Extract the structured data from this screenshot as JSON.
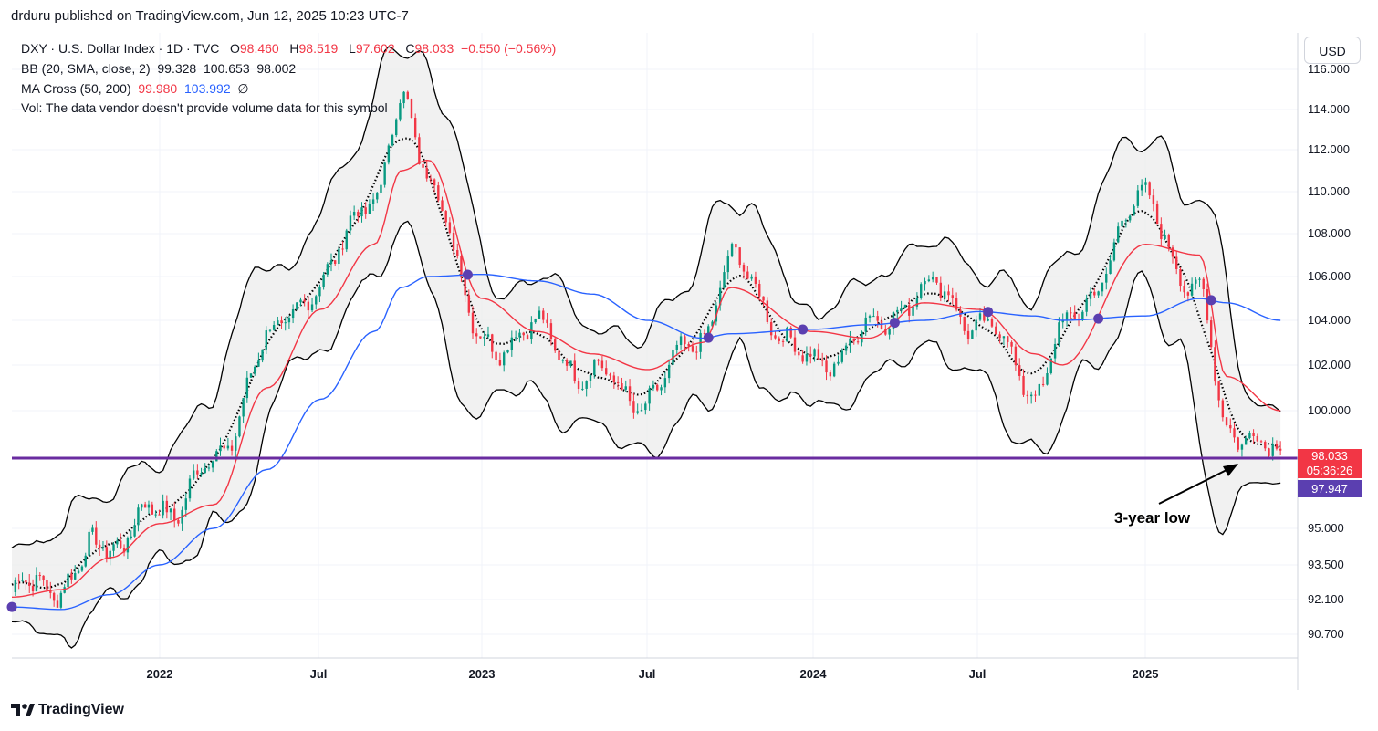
{
  "header": {
    "published": "drduru published on TradingView.com, Jun 12, 2025 10:23 UTC-7"
  },
  "legend": {
    "symbol": "DXY · U.S. Dollar Index · 1D · TVC",
    "o_label": "O",
    "o_value": "98.460",
    "h_label": "H",
    "h_value": "98.519",
    "l_label": "L",
    "l_value": "97.602",
    "c_label": "C",
    "c_value": "98.033",
    "change": "−0.550 (−0.56%)",
    "bb_label": "BB (20, SMA, close, 2)",
    "bb_values": [
      "99.328",
      "100.653",
      "98.002"
    ],
    "ma_label": "MA Cross (50, 200)",
    "ma_fast": "99.980",
    "ma_slow": "103.992",
    "ma_symbol": "∅",
    "vol": "Vol: The data vendor doesn't provide volume data for this symbol"
  },
  "currency_button": "USD",
  "price_tags": {
    "last": "98.033",
    "countdown": "05:36:26",
    "line_level": "97.947"
  },
  "annotation": "3-year low",
  "footer_logo": "TradingView",
  "colors": {
    "up": "#089981",
    "down": "#f23645",
    "ma200": "#2962ff",
    "ma50": "#f23645",
    "level_line": "#6a2ca0",
    "bb": "#000000",
    "cross": "#5b3fb0"
  },
  "chart_data": {
    "type": "line",
    "title": "DXY · U.S. Dollar Index · 1D · TVC",
    "x_ticks": [
      "2022",
      "Jul",
      "2023",
      "Jul",
      "2024",
      "Jul",
      "2025"
    ],
    "y_ticks": [
      "116.000",
      "114.000",
      "112.000",
      "110.000",
      "108.000",
      "106.000",
      "104.000",
      "102.000",
      "100.000",
      "95.000",
      "93.500",
      "92.100",
      "90.700"
    ],
    "horizontal_line": 97.947,
    "x": [
      "2021-07",
      "2021-09",
      "2021-11",
      "2022-01",
      "2022-03",
      "2022-05",
      "2022-07",
      "2022-09",
      "2022-10",
      "2022-11",
      "2023-01",
      "2023-03",
      "2023-05",
      "2023-07",
      "2023-09",
      "2023-10",
      "2024-01",
      "2024-03",
      "2024-05",
      "2024-07",
      "2024-09",
      "2024-10",
      "2025-01",
      "2025-03",
      "2025-04",
      "2025-06"
    ],
    "series": [
      {
        "name": "DXY",
        "values": [
          92.4,
          92.8,
          94.5,
          95.7,
          97.6,
          103.0,
          105.8,
          110.0,
          114.0,
          111.0,
          103.0,
          103.5,
          101.5,
          100.5,
          103.5,
          106.5,
          102.0,
          103.5,
          105.5,
          104.0,
          101.0,
          103.5,
          109.5,
          105.0,
          99.5,
          98.0
        ]
      },
      {
        "name": "MA 200",
        "values": [
          91.8,
          91.7,
          92.3,
          93.5,
          95.0,
          97.5,
          100.5,
          103.5,
          105.5,
          106.0,
          106.1,
          105.8,
          105.2,
          104.0,
          103.2,
          103.4,
          103.6,
          103.8,
          104.0,
          104.4,
          104.2,
          104.0,
          104.2,
          105.0,
          104.8,
          104.0
        ]
      },
      {
        "name": "MA 50",
        "values": [
          92.2,
          92.5,
          93.8,
          95.2,
          96.0,
          101.0,
          104.5,
          107.5,
          111.0,
          111.5,
          105.0,
          103.5,
          102.5,
          101.8,
          103.0,
          105.5,
          103.5,
          103.2,
          104.8,
          104.5,
          102.5,
          102.0,
          107.5,
          107.0,
          101.5,
          100.0
        ]
      }
    ]
  }
}
